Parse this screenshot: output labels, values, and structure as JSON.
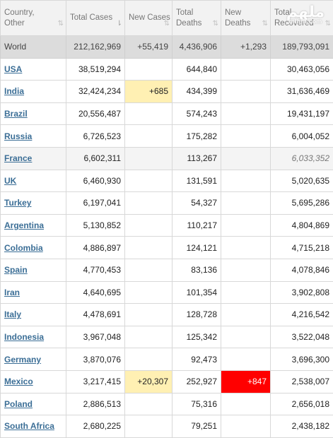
{
  "headers": [
    {
      "label": "Country, Other",
      "sort": "⇅",
      "sort_active": false
    },
    {
      "label": "Total Cases",
      "sort": "⇂",
      "sort_active": true
    },
    {
      "label": "New Cases",
      "sort": "⇅",
      "sort_active": false
    },
    {
      "label": "Total Deaths",
      "sort": "⇅",
      "sort_active": false
    },
    {
      "label": "New Deaths",
      "sort": "⇅",
      "sort_active": false
    },
    {
      "label": "Total Recovered",
      "sort": "⇅",
      "sort_active": false
    }
  ],
  "world": {
    "country": "World",
    "total_cases": "212,162,969",
    "new_cases": "+55,419",
    "total_deaths": "4,436,906",
    "new_deaths": "+1,293",
    "total_recovered": "189,793,091"
  },
  "rows": [
    {
      "country": "USA",
      "total_cases": "38,519,294",
      "new_cases": "",
      "total_deaths": "644,840",
      "new_deaths": "",
      "total_recovered": "30,463,056"
    },
    {
      "country": "India",
      "total_cases": "32,424,234",
      "new_cases": "+685",
      "total_deaths": "434,399",
      "new_deaths": "",
      "total_recovered": "31,636,469"
    },
    {
      "country": "Brazil",
      "total_cases": "20,556,487",
      "new_cases": "",
      "total_deaths": "574,243",
      "new_deaths": "",
      "total_recovered": "19,431,197"
    },
    {
      "country": "Russia",
      "total_cases": "6,726,523",
      "new_cases": "",
      "total_deaths": "175,282",
      "new_deaths": "",
      "total_recovered": "6,004,052"
    },
    {
      "country": "France",
      "total_cases": "6,602,311",
      "new_cases": "",
      "total_deaths": "113,267",
      "new_deaths": "",
      "total_recovered": "6,033,352"
    },
    {
      "country": "UK",
      "total_cases": "6,460,930",
      "new_cases": "",
      "total_deaths": "131,591",
      "new_deaths": "",
      "total_recovered": "5,020,635"
    },
    {
      "country": "Turkey",
      "total_cases": "6,197,041",
      "new_cases": "",
      "total_deaths": "54,327",
      "new_deaths": "",
      "total_recovered": "5,695,286"
    },
    {
      "country": "Argentina",
      "total_cases": "5,130,852",
      "new_cases": "",
      "total_deaths": "110,217",
      "new_deaths": "",
      "total_recovered": "4,804,869"
    },
    {
      "country": "Colombia",
      "total_cases": "4,886,897",
      "new_cases": "",
      "total_deaths": "124,121",
      "new_deaths": "",
      "total_recovered": "4,715,218"
    },
    {
      "country": "Spain",
      "total_cases": "4,770,453",
      "new_cases": "",
      "total_deaths": "83,136",
      "new_deaths": "",
      "total_recovered": "4,078,846"
    },
    {
      "country": "Iran",
      "total_cases": "4,640,695",
      "new_cases": "",
      "total_deaths": "101,354",
      "new_deaths": "",
      "total_recovered": "3,902,808"
    },
    {
      "country": "Italy",
      "total_cases": "4,478,691",
      "new_cases": "",
      "total_deaths": "128,728",
      "new_deaths": "",
      "total_recovered": "4,216,542"
    },
    {
      "country": "Indonesia",
      "total_cases": "3,967,048",
      "new_cases": "",
      "total_deaths": "125,342",
      "new_deaths": "",
      "total_recovered": "3,522,048"
    },
    {
      "country": "Germany",
      "total_cases": "3,870,076",
      "new_cases": "",
      "total_deaths": "92,473",
      "new_deaths": "",
      "total_recovered": "3,696,300"
    },
    {
      "country": "Mexico",
      "total_cases": "3,217,415",
      "new_cases": "+20,307",
      "total_deaths": "252,927",
      "new_deaths": "+847",
      "total_recovered": "2,538,007"
    },
    {
      "country": "Poland",
      "total_cases": "2,886,513",
      "new_cases": "",
      "total_deaths": "75,316",
      "new_deaths": "",
      "total_recovered": "2,656,018"
    },
    {
      "country": "South Africa",
      "total_cases": "2,680,225",
      "new_cases": "",
      "total_deaths": "79,251",
      "new_deaths": "",
      "total_recovered": "2,438,182"
    }
  ],
  "highlights": {
    "new_cases_color": "#fff0b3",
    "new_deaths_color": "#ff0000",
    "world_row_color": "#dcdcdc",
    "link_color": "#3b6e96"
  },
  "watermark": {
    "logo": "ﻣﻠﻬﻢ",
    "sub": "mlhm.com"
  }
}
